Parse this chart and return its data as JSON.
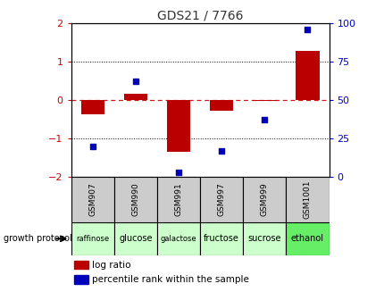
{
  "title": "GDS21 / 7766",
  "samples": [
    "GSM907",
    "GSM990",
    "GSM991",
    "GSM997",
    "GSM999",
    "GSM1001"
  ],
  "protocols": [
    "raffinose",
    "glucose",
    "galactose",
    "fructose",
    "sucrose",
    "ethanol"
  ],
  "log_ratio": [
    -0.38,
    0.17,
    -1.35,
    -0.27,
    -0.03,
    1.27
  ],
  "percentile_rank": [
    20,
    62,
    3,
    17,
    37,
    96
  ],
  "bar_color": "#bb0000",
  "dot_color": "#0000bb",
  "title_color": "#333333",
  "left_axis_color": "#cc0000",
  "right_axis_color": "#0000cc",
  "ylim_left": [
    -2,
    2
  ],
  "ylim_right": [
    0,
    100
  ],
  "protocol_colors": [
    "#ccffcc",
    "#ccffcc",
    "#ccffcc",
    "#ccffcc",
    "#ccffcc",
    "#66ee66"
  ],
  "sample_bg_color": "#cccccc",
  "legend_log_ratio": "log ratio",
  "legend_percentile": "percentile rank within the sample",
  "growth_protocol_label": "growth protocol"
}
